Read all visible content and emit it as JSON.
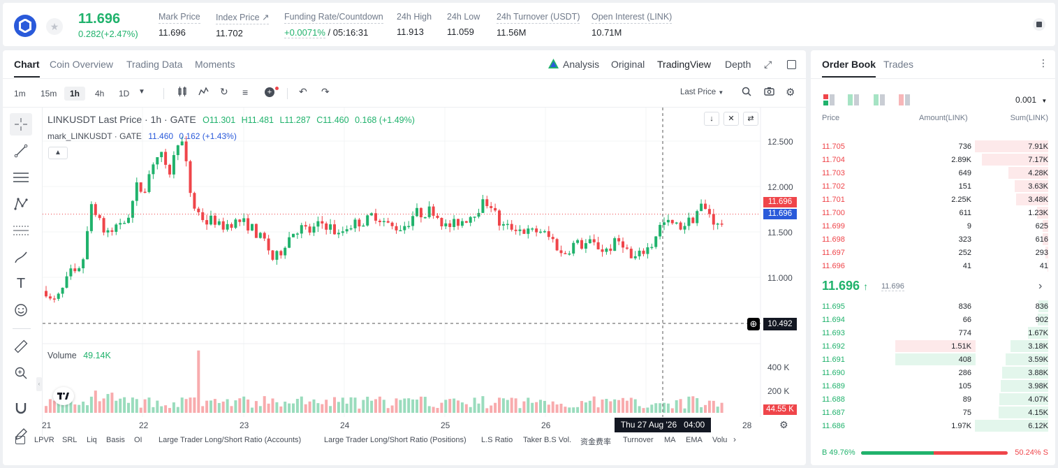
{
  "ticker": {
    "last_price": "11.696",
    "change": "0.282(+2.47%)",
    "stats": [
      {
        "label": "Mark Price",
        "value": "11.696"
      },
      {
        "label": "Index Price ↗",
        "value": "11.702"
      },
      {
        "label": "Funding Rate/Countdown",
        "value_green": "+0.0071%",
        "value": " / 05:16:31"
      },
      {
        "label": "24h High",
        "value": "11.913"
      },
      {
        "label": "24h Low",
        "value": "11.059"
      },
      {
        "label": "24h Turnover (USDT)",
        "value": "11.56M"
      },
      {
        "label": "Open Interest (LINK)",
        "value": "10.71M"
      }
    ]
  },
  "chart_tabs": [
    "Chart",
    "Coin Overview",
    "Trading Data",
    "Moments"
  ],
  "view_tabs": [
    "Analysis",
    "Original",
    "TradingView",
    "Depth"
  ],
  "timeframes": [
    "1m",
    "15m",
    "1h",
    "4h",
    "1D"
  ],
  "price_type": "Last Price",
  "legend": {
    "line1_name": "LINKUSDT Last Price · 1h · GATE",
    "o": "O11.301",
    "h": "H11.481",
    "l": "L11.287",
    "c": "C11.460",
    "chg": "0.168 (+1.49%)",
    "line2_name": "mark_LINKUSDT · GATE",
    "mark_val": "11.460",
    "mark_chg": "0.162 (+1.43%)",
    "volume_label": "Volume",
    "volume_val": "49.14K"
  },
  "price_axis": [
    "12.500",
    "12.000",
    "11.500",
    "11.000"
  ],
  "price_tags": {
    "last": "11.696",
    "mark": "11.696",
    "cross": "10.492"
  },
  "volume_axis": [
    "400 K",
    "200 K"
  ],
  "volume_tag": "44.55 K",
  "time_axis": [
    "21",
    "22",
    "23",
    "24",
    "25",
    "26",
    "28"
  ],
  "crosshair_time": "Thu 27 Aug '26   04:00",
  "indicators": [
    "LPVR",
    "SRL",
    "Liq",
    "Basis",
    "OI",
    "Large Trader Long/Short Ratio (Accounts)",
    "Large Trader Long/Short Ratio (Positions)",
    "L.S Ratio",
    "Taker B.S Vol.",
    "资金费率",
    "Turnover",
    "MA",
    "EMA",
    "Volu"
  ],
  "colors": {
    "up": "#20b26c",
    "down": "#ef454a",
    "accent": "#1f2329"
  },
  "orderbook": {
    "tabs": [
      "Order Book",
      "Trades"
    ],
    "precision": "0.001",
    "headers": [
      "Price",
      "Amount(LINK)",
      "Sum(LINK)"
    ],
    "asks": [
      {
        "price": "11.705",
        "amount": "736",
        "sum": "7.91K",
        "depth": 1.0
      },
      {
        "price": "11.704",
        "amount": "2.89K",
        "sum": "7.17K",
        "depth": 0.906
      },
      {
        "price": "11.703",
        "amount": "649",
        "sum": "4.28K",
        "depth": 0.541
      },
      {
        "price": "11.702",
        "amount": "151",
        "sum": "3.63K",
        "depth": 0.459
      },
      {
        "price": "11.701",
        "amount": "2.25K",
        "sum": "3.48K",
        "depth": 0.44
      },
      {
        "price": "11.700",
        "amount": "611",
        "sum": "1.23K",
        "depth": 0.155
      },
      {
        "price": "11.699",
        "amount": "9",
        "sum": "625",
        "depth": 0.079
      },
      {
        "price": "11.698",
        "amount": "323",
        "sum": "616",
        "depth": 0.078
      },
      {
        "price": "11.697",
        "amount": "252",
        "sum": "293",
        "depth": 0.037
      },
      {
        "price": "11.696",
        "amount": "41",
        "sum": "41",
        "depth": 0.005
      }
    ],
    "mid_price": "11.696",
    "mid_mark": "11.696",
    "bids": [
      {
        "price": "11.695",
        "amount": "836",
        "sum": "836",
        "depth": 0.136
      },
      {
        "price": "11.694",
        "amount": "66",
        "sum": "902",
        "depth": 0.147
      },
      {
        "price": "11.693",
        "amount": "774",
        "sum": "1.67K",
        "depth": 0.272
      },
      {
        "price": "11.692",
        "amount": "1.51K",
        "sum": "3.18K",
        "depth": 0.518
      },
      {
        "price": "11.691",
        "amount": "408",
        "sum": "3.59K",
        "depth": 0.585
      },
      {
        "price": "11.690",
        "amount": "286",
        "sum": "3.88K",
        "depth": 0.632
      },
      {
        "price": "11.689",
        "amount": "105",
        "sum": "3.98K",
        "depth": 0.648
      },
      {
        "price": "11.688",
        "amount": "89",
        "sum": "4.07K",
        "depth": 0.663
      },
      {
        "price": "11.687",
        "amount": "75",
        "sum": "4.15K",
        "depth": 0.676
      },
      {
        "price": "11.686",
        "amount": "1.97K",
        "sum": "6.12K",
        "depth": 1.0
      }
    ],
    "buy_ratio": "B 49.76%",
    "sell_ratio": "50.24% S",
    "buy_fraction": 0.4976
  }
}
